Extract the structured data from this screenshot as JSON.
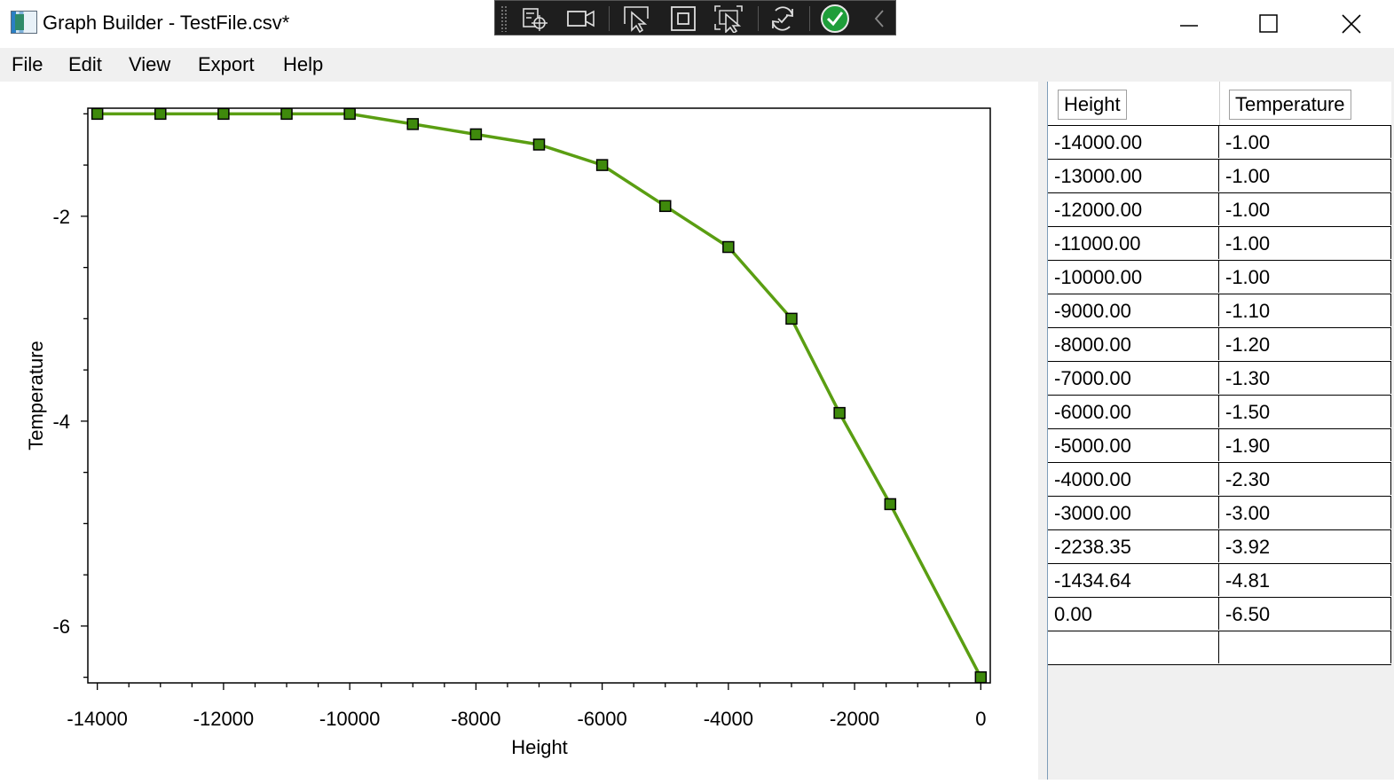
{
  "window": {
    "title": "Graph Builder - TestFile.csv*"
  },
  "menu": [
    "File",
    "Edit",
    "View",
    "Export",
    "Help"
  ],
  "table": {
    "columns": [
      "Height",
      "Temperature"
    ],
    "rows": [
      [
        "-14000.00",
        "-1.00"
      ],
      [
        "-13000.00",
        "-1.00"
      ],
      [
        "-12000.00",
        "-1.00"
      ],
      [
        "-11000.00",
        "-1.00"
      ],
      [
        "-10000.00",
        "-1.00"
      ],
      [
        "-9000.00",
        "-1.10"
      ],
      [
        "-8000.00",
        "-1.20"
      ],
      [
        "-7000.00",
        "-1.30"
      ],
      [
        "-6000.00",
        "-1.50"
      ],
      [
        "-5000.00",
        "-1.90"
      ],
      [
        "-4000.00",
        "-2.30"
      ],
      [
        "-3000.00",
        "-3.00"
      ],
      [
        "-2238.35",
        "-3.92"
      ],
      [
        "-1434.64",
        "-4.81"
      ],
      [
        "0.00",
        "-6.50"
      ],
      [
        "",
        ""
      ]
    ]
  },
  "chart_data": {
    "type": "line",
    "xlabel": "Height",
    "ylabel": "Temperature",
    "x": [
      -14000,
      -13000,
      -12000,
      -11000,
      -10000,
      -9000,
      -8000,
      -7000,
      -6000,
      -5000,
      -4000,
      -3000,
      -2238.35,
      -1434.64,
      0
    ],
    "y": [
      -1.0,
      -1.0,
      -1.0,
      -1.0,
      -1.0,
      -1.1,
      -1.2,
      -1.3,
      -1.5,
      -1.9,
      -2.3,
      -3.0,
      -3.92,
      -4.81,
      -6.5
    ],
    "xlim": [
      -14150,
      150
    ],
    "ylim": [
      -6.555,
      -0.945
    ],
    "x_major_ticks": [
      -14000,
      -12000,
      -10000,
      -8000,
      -6000,
      -4000,
      -2000,
      0
    ],
    "x_tick_labels": [
      "-14000",
      "-12000",
      "-10000",
      "-8000",
      "-6000",
      "-4000",
      "-2000",
      "0"
    ],
    "x_minor_step": 500,
    "y_major_ticks": [
      -2,
      -4,
      -6
    ],
    "y_tick_labels": [
      "-2",
      "-4",
      "-6"
    ],
    "y_minor_step": 0.5,
    "line_color": "#5a9e12",
    "marker": "square",
    "marker_color": "#3f8a0c",
    "grid": false,
    "legend": "none"
  },
  "colors": {
    "accent_green": "#5a9e12",
    "menubar_bg": "#f0f0f0",
    "toolbar_bg": "#1e1e1e",
    "check_green": "#1f9e3a"
  }
}
